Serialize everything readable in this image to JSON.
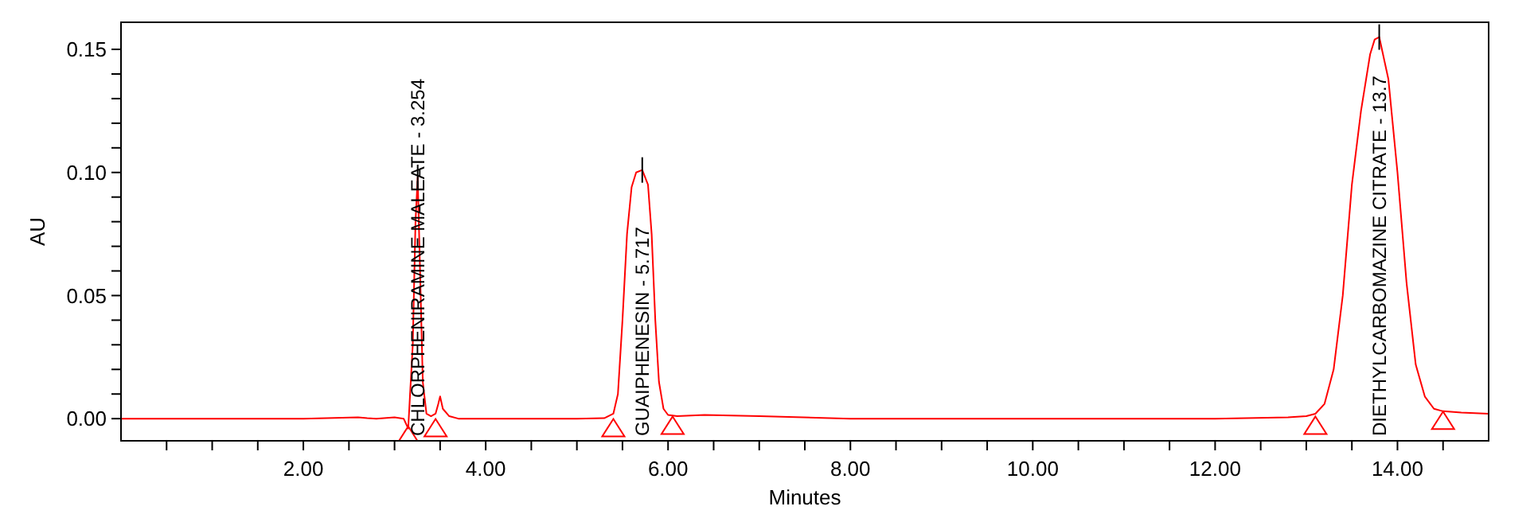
{
  "chart_data": {
    "type": "line",
    "xlabel": "Minutes",
    "ylabel": "AU",
    "xlim": [
      0,
      15
    ],
    "ylim": [
      -0.009,
      0.161
    ],
    "xticks": [
      {
        "value": 0.5,
        "label": null
      },
      {
        "value": 1,
        "label": null
      },
      {
        "value": 1.5,
        "label": null
      },
      {
        "value": 2,
        "label": "2.00"
      },
      {
        "value": 2.5,
        "label": null
      },
      {
        "value": 3,
        "label": null
      },
      {
        "value": 3.5,
        "label": null
      },
      {
        "value": 4,
        "label": "4.00"
      },
      {
        "value": 4.5,
        "label": null
      },
      {
        "value": 5,
        "label": null
      },
      {
        "value": 5.5,
        "label": null
      },
      {
        "value": 6,
        "label": "6.00"
      },
      {
        "value": 6.5,
        "label": null
      },
      {
        "value": 7,
        "label": null
      },
      {
        "value": 7.5,
        "label": null
      },
      {
        "value": 8,
        "label": "8.00"
      },
      {
        "value": 8.5,
        "label": null
      },
      {
        "value": 9,
        "label": null
      },
      {
        "value": 9.5,
        "label": null
      },
      {
        "value": 10,
        "label": "10.00"
      },
      {
        "value": 10.5,
        "label": null
      },
      {
        "value": 11,
        "label": null
      },
      {
        "value": 11.5,
        "label": null
      },
      {
        "value": 12,
        "label": "12.00"
      },
      {
        "value": 12.5,
        "label": null
      },
      {
        "value": 13,
        "label": null
      },
      {
        "value": 13.5,
        "label": null
      },
      {
        "value": 14,
        "label": "14.00"
      },
      {
        "value": 14.5,
        "label": null
      }
    ],
    "yticks": [
      {
        "value": 0,
        "label": "0.00"
      },
      {
        "value": 0.01,
        "label": null
      },
      {
        "value": 0.02,
        "label": null
      },
      {
        "value": 0.03,
        "label": null
      },
      {
        "value": 0.04,
        "label": null
      },
      {
        "value": 0.05,
        "label": "0.05"
      },
      {
        "value": 0.06,
        "label": null
      },
      {
        "value": 0.07,
        "label": null
      },
      {
        "value": 0.08,
        "label": null
      },
      {
        "value": 0.09,
        "label": null
      },
      {
        "value": 0.1,
        "label": "0.10"
      },
      {
        "value": 0.11,
        "label": null
      },
      {
        "value": 0.12,
        "label": null
      },
      {
        "value": 0.13,
        "label": null
      },
      {
        "value": 0.14,
        "label": null
      },
      {
        "value": 0.15,
        "label": "0.15"
      }
    ],
    "grid": false,
    "series": [
      {
        "color": "#ff0000",
        "marker": "none",
        "x": [
          0,
          1,
          2,
          2.6,
          2.7,
          2.8,
          3.0,
          3.1,
          3.15,
          3.2,
          3.23,
          3.254,
          3.28,
          3.31,
          3.35,
          3.4,
          3.45,
          3.48,
          3.5,
          3.53,
          3.6,
          3.7,
          4,
          5,
          5.3,
          5.4,
          5.45,
          5.5,
          5.55,
          5.6,
          5.65,
          5.717,
          5.78,
          5.82,
          5.86,
          5.9,
          5.95,
          6.0,
          6.1,
          6.4,
          7,
          8,
          9,
          10,
          11,
          12,
          12.8,
          13.0,
          13.1,
          13.2,
          13.3,
          13.4,
          13.5,
          13.6,
          13.7,
          13.75,
          13.8,
          13.9,
          14.0,
          14.1,
          14.2,
          14.3,
          14.4,
          14.5,
          14.7,
          15
        ],
        "values": [
          0,
          0,
          0,
          0.0005,
          0.0002,
          0,
          0.0005,
          0,
          -0.004,
          0.03,
          0.08,
          0.098,
          0.06,
          0.015,
          0.002,
          0.001,
          0.002,
          0.006,
          0.009,
          0.004,
          0.001,
          0,
          0,
          0,
          0.0002,
          0.002,
          0.01,
          0.04,
          0.075,
          0.094,
          0.1,
          0.101,
          0.095,
          0.075,
          0.04,
          0.015,
          0.004,
          0.0015,
          0.001,
          0.0015,
          0.001,
          0,
          0,
          0,
          0,
          0,
          0.0005,
          0.001,
          0.002,
          0.006,
          0.02,
          0.05,
          0.095,
          0.125,
          0.148,
          0.154,
          0.155,
          0.138,
          0.1,
          0.055,
          0.022,
          0.009,
          0.004,
          0.003,
          0.0025,
          0.002
        ]
      },
      {
        "type": "scatter",
        "color": "#ff0000",
        "marker": "triangle",
        "x": [
          3.15,
          3.45,
          5.4,
          6.05,
          13.1,
          14.5
        ],
        "values": [
          -0.007,
          -0.004,
          -0.004,
          -0.003,
          -0.003,
          -0.001
        ]
      }
    ],
    "annotations": [
      {
        "text": "CHLORPHENIRAMINE MALEATE - 3.254",
        "x": 3.254,
        "y": 0.098
      },
      {
        "text": "GUAIPHENESIN - 5.717",
        "x": 5.717,
        "y": 0.101
      },
      {
        "text": "DIETHYLCARBOMAZINE CITRATE - 13.7",
        "x": 13.8,
        "y": 0.155
      }
    ]
  }
}
